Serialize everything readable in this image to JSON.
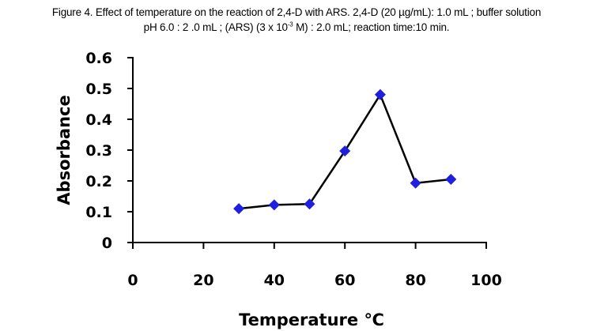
{
  "caption": {
    "line1": "Figure 4. Effect of temperature on the reaction of 2,4-D with ARS. 2,4-D (20 µg/mL): 1.0 mL ; buffer solution",
    "line2_pre": "pH 6.0 : 2 .0 mL ; (ARS) (3 x 10",
    "line2_sup": "-3",
    "line2_post": " M) : 2.0 mL; reaction time:10 min."
  },
  "chart_data": {
    "type": "line",
    "title": "",
    "xlabel": "Temperature ℃",
    "ylabel": "Absorbance",
    "xlim": [
      0,
      100
    ],
    "ylim": [
      0,
      0.6
    ],
    "xticks": [
      "0",
      "20",
      "40",
      "60",
      "80",
      "100"
    ],
    "yticks": [
      "0",
      "0.1",
      "0.2",
      "0.3",
      "0.4",
      "0.5",
      "0.6"
    ],
    "grid": false,
    "legend": "none",
    "marker": "diamond",
    "colors": {
      "line": "#000000",
      "marker": "#1f1fe0",
      "axis": "#000000"
    },
    "series": [
      {
        "x": [
          30,
          40,
          50,
          60,
          70,
          80,
          90
        ],
        "values": [
          0.11,
          0.122,
          0.125,
          0.297,
          0.48,
          0.193,
          0.205
        ]
      }
    ]
  }
}
